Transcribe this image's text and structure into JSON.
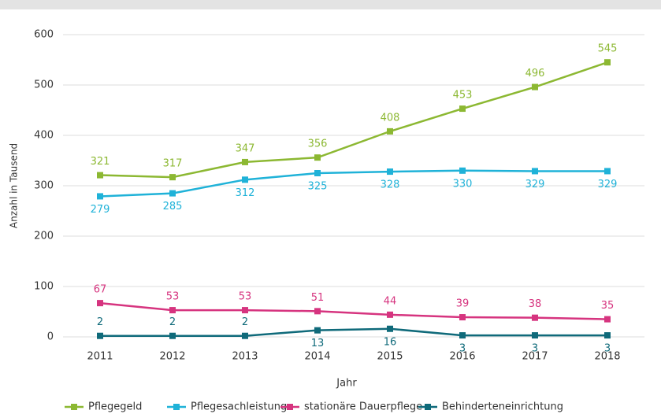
{
  "chart_data": {
    "type": "line",
    "categories": [
      "2011",
      "2012",
      "2013",
      "2014",
      "2015",
      "2016",
      "2017",
      "2018"
    ],
    "series": [
      {
        "name": "Pflegegeld",
        "color": "#8cb832",
        "values": [
          321,
          317,
          347,
          356,
          408,
          453,
          496,
          545
        ]
      },
      {
        "name": "Pflegesachleistung",
        "color": "#1fb2d8",
        "values": [
          279,
          285,
          312,
          325,
          328,
          330,
          329,
          329
        ]
      },
      {
        "name": "stationäre Dauerpflege",
        "color": "#d6347f",
        "values": [
          67,
          53,
          53,
          51,
          44,
          39,
          38,
          35
        ]
      },
      {
        "name": "Behinderteneinrichtung",
        "color": "#0f6a7a",
        "values": [
          2,
          2,
          2,
          13,
          16,
          3,
          3,
          3
        ]
      }
    ],
    "xlabel": "Jahr",
    "ylabel": "Anzahl in Tausend",
    "ylim": [
      0,
      600
    ],
    "yticks": [
      0,
      100,
      200,
      300,
      400,
      500,
      600
    ],
    "grid": true,
    "legend": "bottom"
  }
}
